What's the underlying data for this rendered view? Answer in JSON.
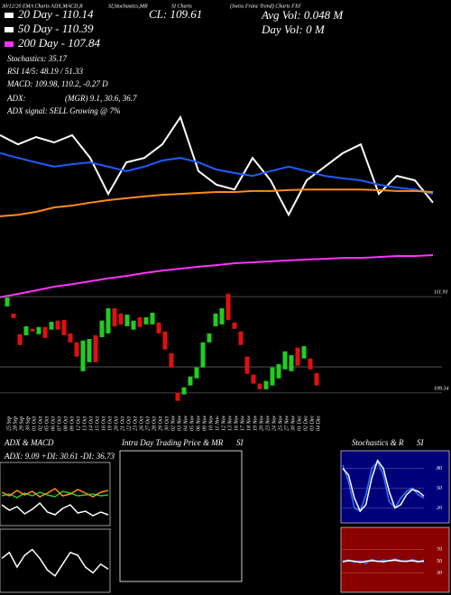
{
  "header": {
    "caption": [
      "30/12/20 EMA Charts ADX,MACD,R",
      "SI,Stochastics,MR",
      "SI Charts",
      "(Swiss Franc Trend) Charts FXF"
    ],
    "close": "CL: 109.61",
    "avg_vol": "Avg Vol: 0.048 M",
    "day_vol": "Day Vol: 0 M",
    "ema20": "20 Day - 110.14",
    "ema50": "50 Day - 110.39",
    "ema200": "200 Day - 107.84",
    "stoch": "Stochastics: 35.17",
    "rsi": "RSI 14/5: 48.19 / 51.33",
    "macd": "MACD: 109.98, 110.2, -0.27 D",
    "adx_label": "ADX:",
    "adx_values": "(MGR) 9.1, 30.6, 36.7",
    "adx_signal": "ADX signal: SELL Growing @ 7%"
  },
  "chart_data": [
    {
      "type": "line",
      "ylim": [
        106,
        112
      ],
      "series": [
        {
          "color": "#ffffff",
          "values": [
            111.43,
            111.14,
            111.37,
            111.2,
            111.43,
            110.71,
            109.57,
            110.57,
            110.71,
            111.14,
            112,
            110.29,
            109.86,
            109.71,
            110.71,
            110,
            108.91,
            110,
            110.43,
            110.86,
            111.14,
            109.57,
            110.14,
            110,
            109.29
          ]
        },
        {
          "color": "#1f5bff",
          "values": [
            110.86,
            110.71,
            110.57,
            110.43,
            110.51,
            110.57,
            110.43,
            110.29,
            110.43,
            110.63,
            110.71,
            110.57,
            110.34,
            110.23,
            110.14,
            110.29,
            110.43,
            110.29,
            110.14,
            110.06,
            110,
            109.86,
            109.77,
            109.71,
            109.57
          ]
        },
        {
          "color": "#ff8c1a",
          "values": [
            108.86,
            108.91,
            109,
            109.14,
            109.2,
            109.29,
            109.37,
            109.43,
            109.49,
            109.54,
            109.57,
            109.6,
            109.63,
            109.63,
            109.66,
            109.66,
            109.69,
            109.71,
            109.71,
            109.71,
            109.71,
            109.69,
            109.66,
            109.66,
            109.63
          ]
        },
        {
          "color": "#ff33ff",
          "values": [
            106.29,
            106.4,
            106.51,
            106.63,
            106.71,
            106.8,
            106.89,
            106.97,
            107.06,
            107.14,
            107.2,
            107.26,
            107.31,
            107.37,
            107.4,
            107.43,
            107.46,
            107.49,
            107.51,
            107.54,
            107.54,
            107.57,
            107.6,
            107.6,
            107.63
          ]
        }
      ]
    },
    {
      "type": "candlestick",
      "ylim": [
        108.76,
        112.61
      ],
      "yticks": [
        111.91,
        109.34
      ],
      "up_color": "#22cc22",
      "down_color": "#e01010",
      "categories": [
        "25 Sep",
        "28 Sep",
        "29 Sep",
        "30 Sep",
        "01 Oct",
        "02 Oct",
        "05 Oct",
        "06 Oct",
        "07 Oct",
        "08 Oct",
        "09 Oct",
        "12 Oct",
        "13 Oct",
        "14 Oct",
        "15 Oct",
        "16 Oct",
        "19 Oct",
        "20 Oct",
        "21 Oct",
        "22 Oct",
        "23 Oct",
        "26 Oct",
        "27 Oct",
        "28 Oct",
        "29 Oct",
        "30 Oct",
        "02 Nov",
        "03 Nov",
        "04 Nov",
        "05 Nov",
        "06 Nov",
        "09 Nov",
        "10 Nov",
        "11 Nov",
        "12 Nov",
        "13 Nov",
        "16 Nov",
        "17 Nov",
        "18 Nov",
        "19 Nov",
        "20 Nov",
        "23 Nov",
        "24 Nov",
        "25 Nov",
        "27 Nov",
        "30 Nov",
        "01 Dec",
        "02 Dec",
        "03 Dec",
        "04 Dec"
      ],
      "open": [
        111.65,
        111.46,
        110.91,
        110.88,
        111.05,
        110.91,
        111.1,
        111.03,
        111.27,
        111.29,
        110.93,
        110.69,
        109.92,
        110.16,
        110.88,
        110.83,
        110.93,
        111.6,
        111.46,
        111.12,
        111.03,
        111.36,
        111.17,
        111.17,
        111.22,
        110.98,
        110.4,
        109.35,
        109.3,
        109.54,
        109.73,
        110.02,
        110.69,
        111.12,
        111.17,
        111.99,
        111.22,
        110.98,
        110.31,
        109.83,
        109.59,
        109.44,
        109.54,
        109.73,
        109.97,
        109.92,
        110.55,
        110.26,
        110.26,
        109.87
      ],
      "close": [
        111.89,
        111.34,
        110.62,
        111.12,
        110.98,
        111.1,
        110.81,
        111.24,
        111.03,
        110.88,
        110.69,
        110.31,
        110.74,
        110.78,
        110.16,
        111.27,
        111.6,
        111.12,
        111.17,
        111.43,
        111.27,
        111.1,
        111.36,
        111.48,
        110.93,
        110.5,
        110.02,
        109.13,
        109.49,
        109.78,
        110.02,
        110.69,
        110.93,
        111.46,
        111.6,
        111.29,
        111.05,
        110.62,
        109.85,
        109.59,
        109.44,
        109.66,
        110.02,
        110.11,
        110.45,
        110.35,
        110.07,
        110.59,
        109.97,
        109.54
      ]
    },
    {
      "type": "line",
      "title": "ADX & MACD",
      "subtitle": "ADX: 9.09 +DI: 30.61 -DI: 36.73",
      "ylim": [
        0,
        60
      ],
      "series": [
        {
          "color": "#22cc22",
          "values": [
            30,
            32,
            28,
            33,
            30,
            34,
            31,
            29,
            35,
            33,
            30,
            31,
            32,
            30,
            31
          ]
        },
        {
          "color": "#ff8c1a",
          "values": [
            34,
            30,
            36,
            31,
            35,
            29,
            33,
            38,
            30,
            32,
            37,
            33,
            29,
            34,
            36
          ]
        },
        {
          "color": "#ffffff",
          "values": [
            20,
            14,
            18,
            10,
            15,
            22,
            12,
            9,
            16,
            20,
            11,
            13,
            8,
            12,
            9
          ]
        }
      ]
    },
    {
      "type": "line",
      "ylim": [
        -1,
        1
      ],
      "series": [
        {
          "color": "#ffffff",
          "values": [
            0.1,
            0.3,
            -0.2,
            0.2,
            0.4,
            0.1,
            -0.3,
            -0.5,
            -0.1,
            0.3,
            0.2,
            -0.2,
            -0.4,
            -0.1,
            -0.27
          ]
        }
      ]
    },
    {
      "type": "blank",
      "title": "Intra Day Trading Price & MR",
      "subtitle": "SI"
    },
    {
      "type": "line",
      "title": "Stochastics & R",
      "subtitle": "SI",
      "ylim": [
        0,
        100
      ],
      "yticks": [
        80,
        50,
        20
      ],
      "series": [
        {
          "color": "#3377ff",
          "values": [
            85,
            60,
            20,
            15,
            40,
            80,
            90,
            70,
            30,
            20,
            35,
            45,
            50,
            40,
            35
          ]
        },
        {
          "color": "#ffffff",
          "values": [
            80,
            70,
            35,
            15,
            25,
            65,
            92,
            80,
            45,
            20,
            25,
            40,
            48,
            45,
            38
          ]
        }
      ]
    },
    {
      "type": "line",
      "ylim": [
        0,
        100
      ],
      "yticks": [
        70,
        50,
        30
      ],
      "series": [
        {
          "color": "#3377ff",
          "values": [
            50,
            52,
            48,
            51,
            46,
            53,
            49,
            52,
            50,
            54,
            51,
            49,
            53,
            50,
            48
          ]
        },
        {
          "color": "#ffffff",
          "values": [
            49,
            51,
            50,
            48,
            50,
            51,
            50,
            49,
            51,
            52,
            50,
            50,
            51,
            49,
            51
          ]
        }
      ]
    }
  ]
}
